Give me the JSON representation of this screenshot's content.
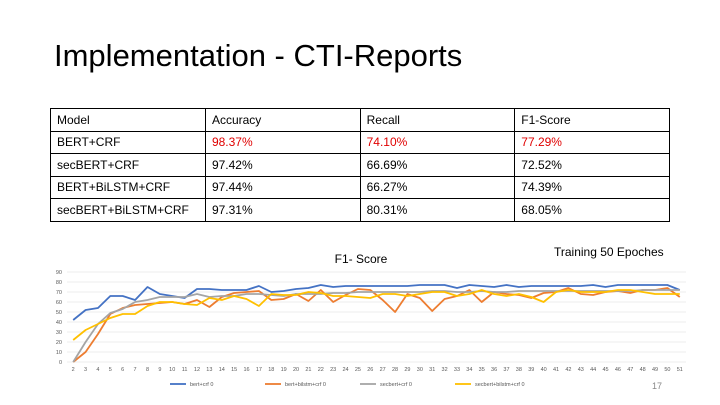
{
  "slide": {
    "title": "Implementation - CTI-Reports",
    "training_note": "Training 50 Epoches",
    "page_number": "17"
  },
  "table": {
    "headers": [
      "Model",
      "Accuracy",
      "Recall",
      "F1-Score"
    ],
    "rows": [
      [
        "BERT+CRF",
        "98.37%",
        "74.10%",
        "77.29%"
      ],
      [
        "secBERT+CRF",
        "97.42%",
        "66.69%",
        "72.52%"
      ],
      [
        "BERT+BiLSTM+CRF",
        "97.44%",
        "66.27%",
        "74.39%"
      ],
      [
        "secBERT+BiLSTM+CRF",
        "97.31%",
        "80.31%",
        "68.05%"
      ]
    ],
    "highlight_color": "#e00000"
  },
  "chart_data": {
    "type": "line",
    "title": "F1- Score",
    "xlabel": "",
    "ylabel": "",
    "ylim": [
      0,
      90
    ],
    "yticks": [
      0,
      10,
      20,
      30,
      40,
      50,
      60,
      70,
      80,
      90
    ],
    "x": [
      2,
      3,
      4,
      5,
      6,
      7,
      8,
      9,
      10,
      11,
      12,
      13,
      14,
      15,
      16,
      17,
      18,
      19,
      20,
      21,
      22,
      23,
      24,
      25,
      26,
      27,
      28,
      29,
      30,
      31,
      32,
      33,
      34,
      35,
      36,
      37,
      38,
      39,
      40,
      41,
      42,
      43,
      44,
      45,
      46,
      47,
      48,
      49,
      50,
      51
    ],
    "grid": true,
    "legend": "bottom",
    "series": [
      {
        "name": "bert+crf 0",
        "color": "#4472c4",
        "values": [
          42,
          52,
          54,
          66,
          66,
          62,
          75,
          68,
          66,
          64,
          73,
          73,
          72,
          72,
          72,
          76,
          70,
          71,
          73,
          74,
          77,
          75,
          76,
          76,
          76,
          76,
          76,
          76,
          77,
          77,
          77,
          74,
          77,
          76,
          75,
          77,
          75,
          76,
          76,
          76,
          76,
          76,
          77,
          75,
          77,
          77,
          77,
          77,
          77,
          72
        ]
      },
      {
        "name": "bert+bilstm+crf 0",
        "color": "#ed7d31",
        "values": [
          0,
          10,
          28,
          48,
          54,
          57,
          58,
          59,
          60,
          58,
          62,
          55,
          65,
          69,
          70,
          71,
          62,
          63,
          68,
          61,
          72,
          60,
          67,
          73,
          72,
          62,
          50,
          68,
          64,
          51,
          63,
          66,
          72,
          60,
          70,
          68,
          67,
          64,
          69,
          70,
          74,
          68,
          67,
          70,
          71,
          69,
          72,
          72,
          74,
          65
        ]
      },
      {
        "name": "secbert+crf 0",
        "color": "#a5a5a5",
        "values": [
          0,
          20,
          38,
          49,
          53,
          60,
          62,
          65,
          65,
          65,
          68,
          65,
          66,
          66,
          68,
          68,
          67,
          66,
          68,
          68,
          68,
          69,
          69,
          70,
          70,
          70,
          70,
          70,
          70,
          71,
          71,
          70,
          70,
          71,
          70,
          70,
          71,
          71,
          71,
          71,
          71,
          71,
          71,
          71,
          71,
          71,
          72,
          72,
          72,
          72
        ]
      },
      {
        "name": "secbert+bilstm+crf 0",
        "color": "#ffc000",
        "values": [
          22,
          32,
          38,
          44,
          48,
          48,
          56,
          60,
          60,
          58,
          57,
          64,
          62,
          66,
          63,
          56,
          68,
          67,
          67,
          70,
          69,
          66,
          66,
          65,
          64,
          68,
          68,
          66,
          68,
          70,
          70,
          66,
          68,
          72,
          68,
          66,
          68,
          65,
          60,
          70,
          72,
          70,
          70,
          70,
          72,
          72,
          70,
          68,
          68,
          68
        ]
      }
    ]
  }
}
